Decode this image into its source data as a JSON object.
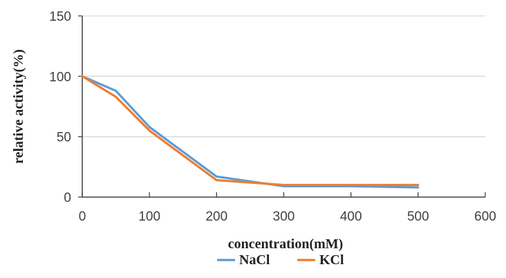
{
  "chart_data": {
    "type": "line",
    "xlabel": "concentration(mM)",
    "ylabel": "relative activity(%)",
    "xlim": [
      0,
      600
    ],
    "ylim": [
      0,
      150
    ],
    "x_ticks": [
      0,
      100,
      200,
      300,
      400,
      500,
      600
    ],
    "y_ticks": [
      0,
      50,
      100,
      150
    ],
    "grid": "horizontal",
    "legend_position": "bottom",
    "series": [
      {
        "name": "NaCl",
        "color": "#5b9bd5",
        "x": [
          0,
          50,
          100,
          200,
          300,
          400,
          500
        ],
        "y": [
          100,
          88,
          58,
          17,
          9,
          9,
          8
        ]
      },
      {
        "name": "KCl",
        "color": "#ed7d31",
        "x": [
          0,
          50,
          100,
          200,
          300,
          400,
          500
        ],
        "y": [
          100,
          83,
          55,
          14,
          10,
          10,
          10
        ]
      }
    ]
  }
}
